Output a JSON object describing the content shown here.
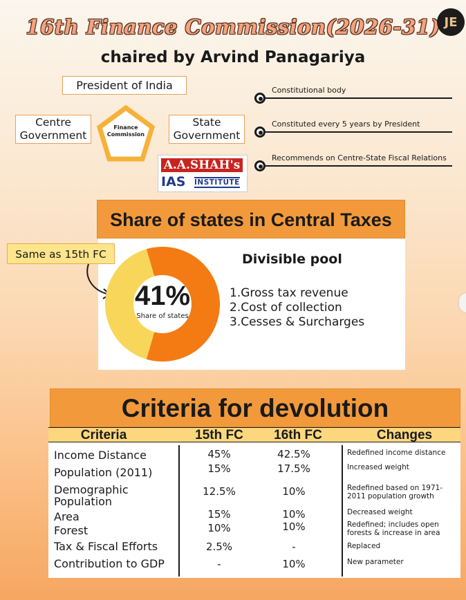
{
  "header": {
    "title": "16th Finance Commission(2026-31)",
    "subtitle": "chaired by Arvind Panagariya",
    "logo_text": "JE"
  },
  "structure": {
    "president": "President of India",
    "centre": "Centre Government",
    "state": "State Government",
    "commission": "Finance Commission"
  },
  "features": [
    "Constitutional body",
    "Constituted every 5 years by President",
    "Recommends on Centre-State Fiscal Relations"
  ],
  "institute": {
    "name": "A.A.SHAH's",
    "ias": "IAS",
    "institute": "INSTITUTE"
  },
  "share": {
    "heading": "Share of states in Central Taxes",
    "callout": "Same as 15th FC",
    "percent": "41%",
    "percent_label": "Share of states",
    "pool_title": "Divisible pool",
    "pool_items": [
      "1.Gross tax revenue",
      "2.Cost of collection",
      "3.Cesses & Surcharges"
    ]
  },
  "chart_data": {
    "type": "pie",
    "slices": [
      {
        "label": "Share of states",
        "value": 41,
        "color": "#f8d65a"
      },
      {
        "label": "",
        "value": 59,
        "color": "#f47b13"
      }
    ]
  },
  "criteria": {
    "heading": "Criteria for devolution",
    "columns": [
      "Criteria",
      "15th FC",
      "16th FC",
      "Changes"
    ],
    "rows": [
      {
        "name": "Income Distance",
        "fc15": "45%",
        "fc16": "42.5%",
        "change": "Redefined income distance"
      },
      {
        "name": "Population (2011)",
        "fc15": "15%",
        "fc16": "17.5%",
        "change": "Increased weight"
      },
      {
        "name": "Demographic Population",
        "fc15": "12.5%",
        "fc16": "10%",
        "change": "Redefined based on 1971-2011 population growth"
      },
      {
        "name": "Area",
        "fc15": "15%",
        "fc16": "10%",
        "change": "Decreased weight"
      },
      {
        "name": "Forest",
        "fc15": "10%",
        "fc16": "10%",
        "change": "Redefined; includes open forests & increase in area"
      },
      {
        "name": "Tax & Fiscal Efforts",
        "fc15": "2.5%",
        "fc16": "-",
        "change": "Replaced"
      },
      {
        "name": "Contribution to GDP",
        "fc15": "-",
        "fc16": "10%",
        "change": "New parameter"
      }
    ]
  }
}
